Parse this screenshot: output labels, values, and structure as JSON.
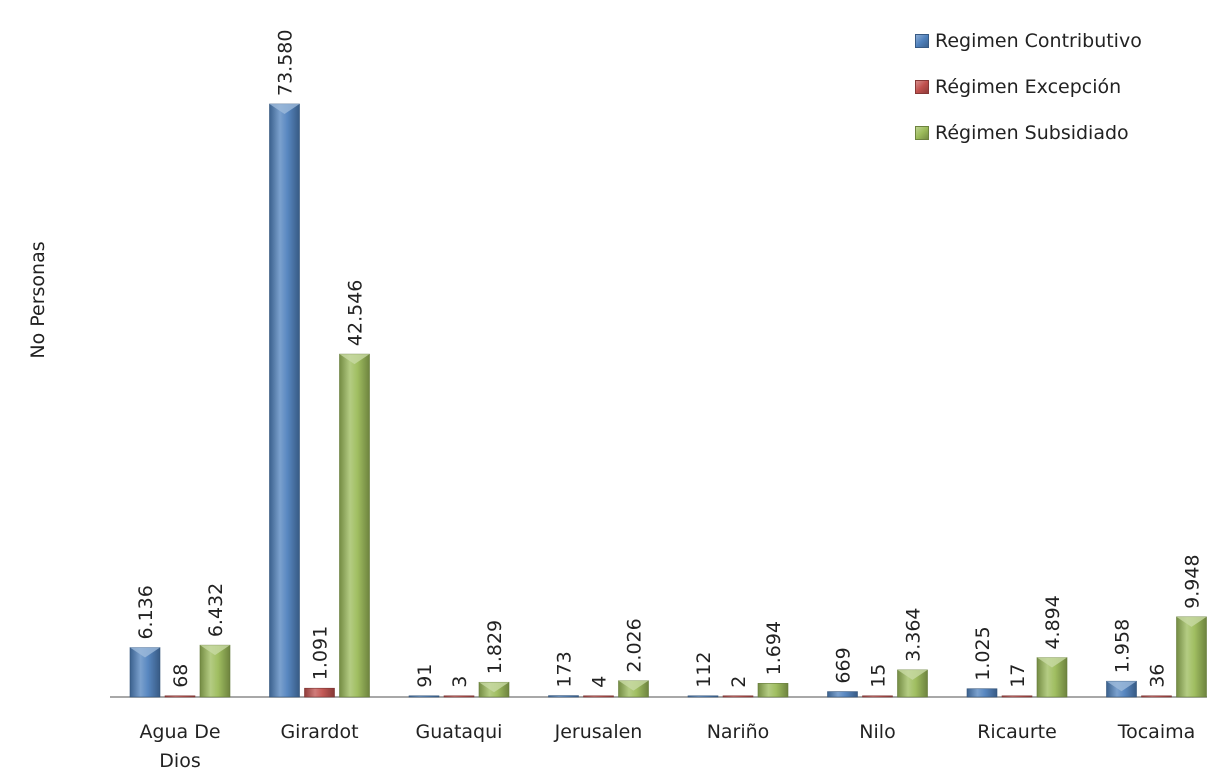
{
  "chart_data": {
    "type": "bar",
    "title": "",
    "xlabel": "",
    "ylabel": "No  Personas",
    "ylim": [
      0,
      74000
    ],
    "grid": false,
    "legend_position": "top-right",
    "categories": [
      [
        "Agua De",
        "Dios"
      ],
      [
        "Girardot"
      ],
      [
        "Guataqui"
      ],
      [
        "Jerusalen"
      ],
      [
        "Nariño"
      ],
      [
        "Nilo"
      ],
      [
        "Ricaurte"
      ],
      [
        "Tocaima"
      ]
    ],
    "series": [
      {
        "name": "Regimen Contributivo",
        "color": "#4f81bd",
        "values": [
          6136,
          73580,
          91,
          173,
          112,
          669,
          1025,
          1958
        ],
        "labels": [
          "6.136",
          "73.580",
          "91",
          "173",
          "112",
          "669",
          "1.025",
          "1.958"
        ]
      },
      {
        "name": "Régimen Excepción",
        "color": "#c0504d",
        "values": [
          68,
          1091,
          3,
          4,
          2,
          15,
          17,
          36
        ],
        "labels": [
          "68",
          "1.091",
          "3",
          "4",
          "2",
          "15",
          "17",
          "36"
        ]
      },
      {
        "name": "Régimen Subsidiado",
        "color": "#9bbb59",
        "values": [
          6432,
          42546,
          1829,
          2026,
          1694,
          3364,
          4894,
          9948
        ],
        "labels": [
          "6.432",
          "42.546",
          "1.829",
          "2.026",
          "1.694",
          "3.364",
          "4.894",
          "9.948"
        ]
      }
    ]
  }
}
